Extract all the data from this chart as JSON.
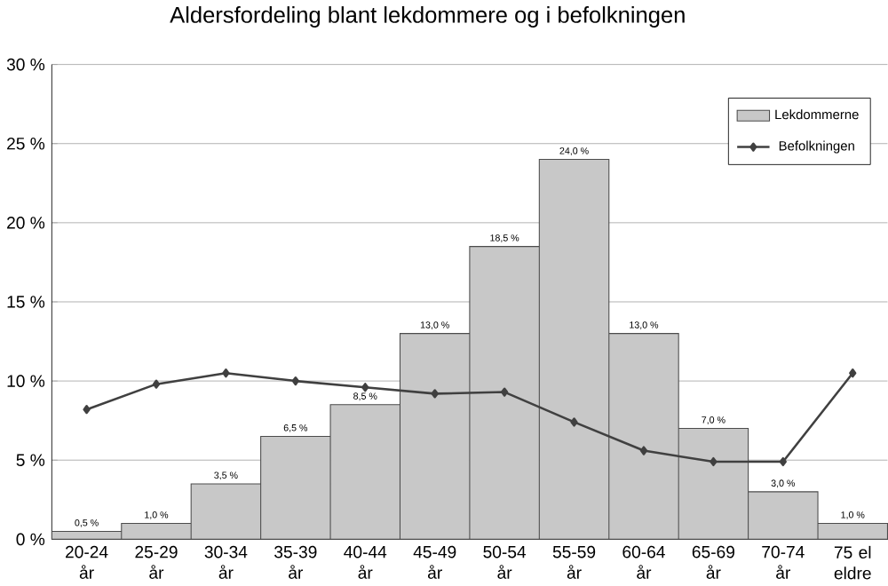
{
  "chart_data": {
    "type": "bar",
    "title": "Aldersfordeling blant lekdommere og i befolkningen",
    "categories": [
      "20-24 år",
      "25-29 år",
      "30-34 år",
      "35-39 år",
      "40-44 år",
      "45-49 år",
      "50-54 år",
      "55-59 år",
      "60-64 år",
      "65-69 år",
      "70-74 år",
      "75 el eldre"
    ],
    "series": [
      {
        "name": "Lekdommerne",
        "color": "#c8c8c8",
        "values": [
          0.5,
          1.0,
          3.5,
          6.5,
          8.5,
          13.0,
          18.5,
          24.0,
          13.0,
          7.0,
          3.0,
          1.0
        ],
        "value_labels": [
          "0,5 %",
          "1,0 %",
          "3,5 %",
          "6,5 %",
          "8,5 %",
          "13,0 %",
          "18,5 %",
          "24,0 %",
          "13,0 %",
          "7,0 %",
          "3,0 %",
          "1,0 %"
        ]
      },
      {
        "name": "Befolkningen",
        "type": "line",
        "color": "#404040",
        "marker": "diamond",
        "values": [
          8.2,
          9.8,
          10.5,
          10.0,
          9.6,
          9.2,
          9.3,
          7.4,
          5.6,
          4.9,
          4.9,
          10.5
        ]
      }
    ],
    "ylim": [
      0,
      30
    ],
    "yticks": [
      {
        "value": 0,
        "label": "0 %"
      },
      {
        "value": 5,
        "label": "5 %"
      },
      {
        "value": 10,
        "label": "10 %"
      },
      {
        "value": 15,
        "label": "15 %"
      },
      {
        "value": 20,
        "label": "20 %"
      },
      {
        "value": 25,
        "label": "25 %"
      },
      {
        "value": 30,
        "label": "30 %"
      }
    ],
    "grid": "y",
    "legend": "top right"
  }
}
